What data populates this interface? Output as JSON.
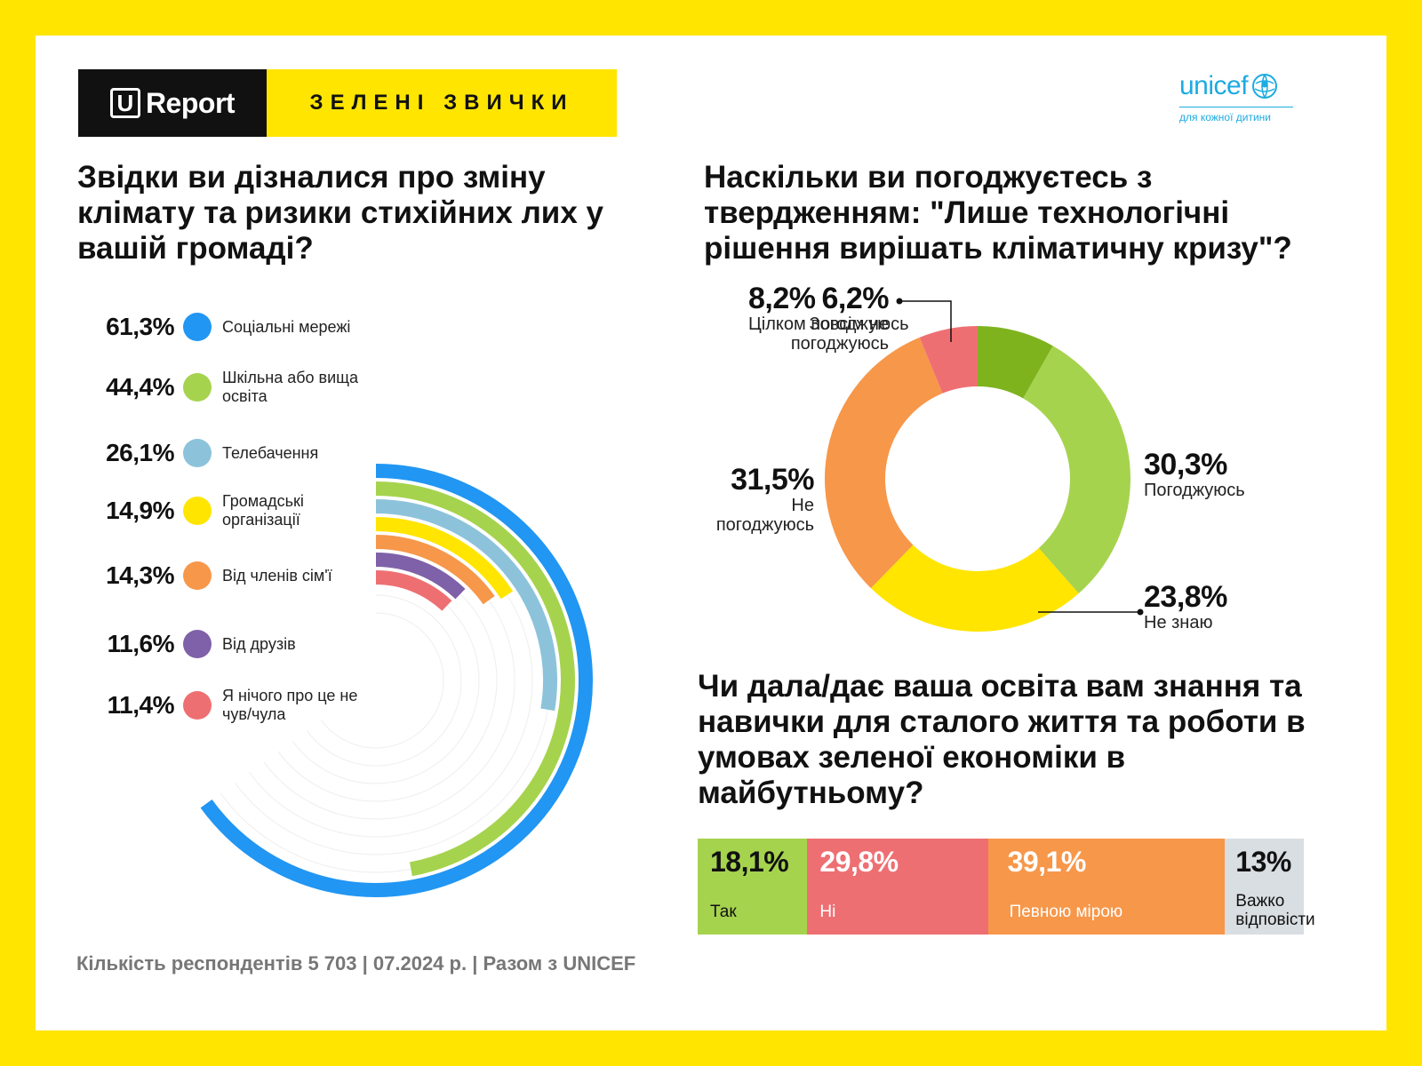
{
  "header": {
    "brand_letter": "U",
    "brand_name": "Report",
    "series_title": "ЗЕЛЕНІ ЗВИЧКИ"
  },
  "partner": {
    "name": "unicef",
    "tagline": "для кожної дитини"
  },
  "colors": {
    "blue": "#2196F3",
    "lightgreen": "#A6D34E",
    "lightblue": "#8CC3DB",
    "yellow": "#FFE500",
    "orange": "#F7974A",
    "purple": "#7E61A8",
    "pink": "#EE6F72",
    "darkgreen": "#7EB31E",
    "grey": "#D9DEE2"
  },
  "chart_data": [
    {
      "type": "radial-bar",
      "title": "Звідки ви дізналися про зміну клімату та ризики стихійних лих у вашій громаді?",
      "categories": [
        "Соціальні мережі",
        "Шкільна або вища освіта",
        "Телебачення",
        "Громадські організації",
        "Від членів сім'ї",
        "Від друзів",
        "Я нічого про це не чув/чула"
      ],
      "values": [
        61.3,
        44.4,
        26.1,
        14.9,
        14.3,
        11.6,
        11.4
      ],
      "labels": [
        "61,3%",
        "44,4%",
        "26,1%",
        "14,9%",
        "14,3%",
        "11,6%",
        "11,4%"
      ],
      "colors": [
        "#2196F3",
        "#A6D34E",
        "#8CC3DB",
        "#FFE500",
        "#F7974A",
        "#7E61A8",
        "#EE6F72"
      ],
      "unit": "%"
    },
    {
      "type": "pie",
      "title": "Наскільки ви погоджуєтесь з твердженням: \"Лише технологічні рішення вирішать кліматичну кризу\"?",
      "categories": [
        "Цілком погоджуюсь",
        "Погоджуюсь",
        "Не знаю",
        "Не погоджуюсь",
        "Зовсім не погоджуюсь"
      ],
      "values": [
        8.2,
        30.3,
        23.8,
        31.5,
        6.2
      ],
      "labels": [
        "8,2%",
        "30,3%",
        "23,8%",
        "31,5%",
        "6,2%"
      ],
      "colors": [
        "#7EB31E",
        "#A6D34E",
        "#FFE500",
        "#F7974A",
        "#EE6F72"
      ],
      "unit": "%"
    },
    {
      "type": "bar",
      "orientation": "horizontal-stacked",
      "title": "Чи дала/дає ваша освіта вам знання та навички для сталого життя та роботи в умовах зеленої економіки в майбутньому?",
      "categories": [
        "Так",
        "Ні",
        "Певною мірою",
        "Важко відповісти"
      ],
      "values": [
        18.1,
        29.8,
        39.1,
        13
      ],
      "labels": [
        "18,1%",
        "29,8%",
        "39,1%",
        "13%"
      ],
      "colors": [
        "#A6D34E",
        "#EE6F72",
        "#F7974A",
        "#D9DEE2"
      ],
      "unit": "%"
    }
  ],
  "footer": {
    "text": "Кількість респондентів 5 703 | 07.2024 р. |  Разом з UNICEF"
  }
}
